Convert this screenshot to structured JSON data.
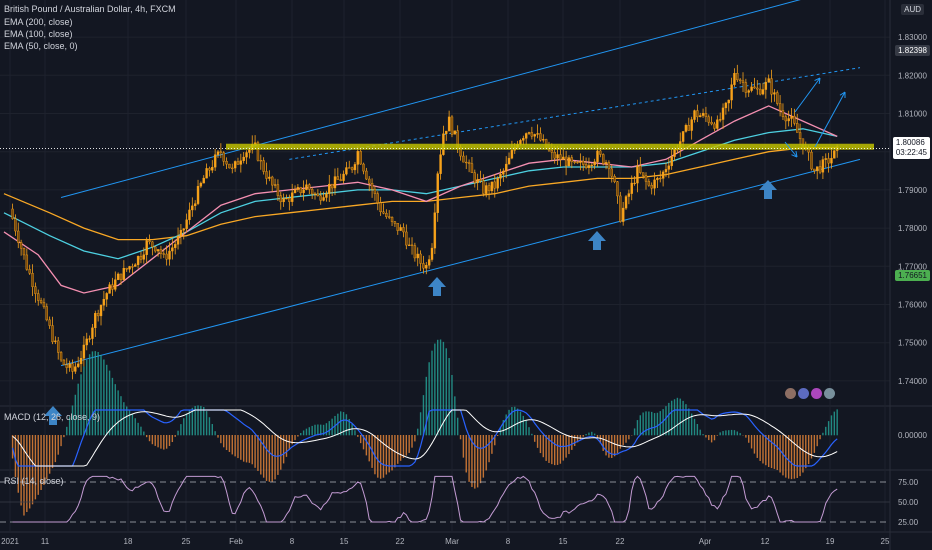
{
  "title": "British Pound / Australian Dollar, 4h, FXCM",
  "indicators": [
    "EMA (200, close)",
    "EMA (100, close)",
    "EMA (50, close, 0)"
  ],
  "currency": "AUD",
  "macd_label": "MACD (12, 26, close, 9)",
  "rsi_label": "RSI (14, close)",
  "chart_data": {
    "type": "candlestick",
    "title": "British Pound / Australian Dollar, 4h, FXCM",
    "ylim": [
      1.735,
      1.835
    ],
    "y_ticks": [
      "1.83000",
      "1.82000",
      "1.81000",
      "1.80000",
      "1.79000",
      "1.78000",
      "1.77000",
      "1.76000",
      "1.75000",
      "1.74000"
    ],
    "x_ticks": [
      "2021",
      "11",
      "18",
      "25",
      "Feb",
      "8",
      "15",
      "22",
      "Mar",
      "8",
      "15",
      "22",
      "Apr",
      "12",
      "19",
      "25"
    ],
    "price_labels": {
      "high": "1.82398",
      "current": "1.80086",
      "countdown": "03:22:45",
      "low": "1.76651"
    },
    "resistance_level": 1.8013,
    "price_path": [
      [
        1,
        1.785
      ],
      [
        4,
        1.77
      ],
      [
        7,
        1.758
      ],
      [
        10,
        1.745
      ],
      [
        12,
        1.7425
      ],
      [
        14,
        1.748
      ],
      [
        16,
        1.757
      ],
      [
        18,
        1.763
      ],
      [
        20,
        1.767
      ],
      [
        22,
        1.77
      ],
      [
        24,
        1.773
      ],
      [
        25,
        1.776
      ],
      [
        27,
        1.775
      ],
      [
        28,
        1.772
      ],
      [
        31,
        1.778
      ],
      [
        33,
        1.786
      ],
      [
        35,
        1.793
      ],
      [
        37,
        1.798
      ],
      [
        38,
        1.8
      ],
      [
        40,
        1.795
      ],
      [
        42,
        1.8
      ],
      [
        44,
        1.801
      ],
      [
        45,
        1.797
      ],
      [
        47,
        1.791
      ],
      [
        49,
        1.787
      ],
      [
        51,
        1.789
      ],
      [
        53,
        1.791
      ],
      [
        55,
        1.788
      ],
      [
        57,
        1.791
      ],
      [
        59,
        1.793
      ],
      [
        61,
        1.796
      ],
      [
        62,
        1.8
      ],
      [
        64,
        1.792
      ],
      [
        66,
        1.785
      ],
      [
        68,
        1.781
      ],
      [
        70,
        1.779
      ],
      [
        71,
        1.775
      ],
      [
        73,
        1.771
      ],
      [
        74,
        1.77
      ],
      [
        75,
        1.776
      ],
      [
        76,
        1.795
      ],
      [
        77,
        1.805
      ],
      [
        78,
        1.808
      ],
      [
        80,
        1.8
      ],
      [
        82,
        1.794
      ],
      [
        84,
        1.79
      ],
      [
        86,
        1.791
      ],
      [
        88,
        1.796
      ],
      [
        90,
        1.803
      ],
      [
        92,
        1.806
      ],
      [
        94,
        1.803
      ],
      [
        96,
        1.799
      ],
      [
        98,
        1.798
      ],
      [
        100,
        1.796
      ],
      [
        102,
        1.797
      ],
      [
        104,
        1.799
      ],
      [
        106,
        1.797
      ],
      [
        107,
        1.791
      ],
      [
        108,
        1.783
      ],
      [
        109,
        1.787
      ],
      [
        111,
        1.795
      ],
      [
        113,
        1.791
      ],
      [
        115,
        1.793
      ],
      [
        117,
        1.799
      ],
      [
        119,
        1.804
      ],
      [
        121,
        1.81
      ],
      [
        123,
        1.809
      ],
      [
        125,
        1.807
      ],
      [
        127,
        1.813
      ],
      [
        128,
        1.821
      ],
      [
        130,
        1.817
      ],
      [
        132,
        1.816
      ],
      [
        134,
        1.818
      ],
      [
        136,
        1.811
      ],
      [
        138,
        1.808
      ],
      [
        140,
        1.802
      ],
      [
        142,
        1.795
      ],
      [
        144,
        1.797
      ],
      [
        146,
        1.8
      ]
    ],
    "ema50": [
      [
        0,
        1.779
      ],
      [
        6,
        1.773
      ],
      [
        10,
        1.765
      ],
      [
        14,
        1.763
      ],
      [
        20,
        1.765
      ],
      [
        26,
        1.772
      ],
      [
        32,
        1.779
      ],
      [
        38,
        1.786
      ],
      [
        44,
        1.789
      ],
      [
        50,
        1.79
      ],
      [
        56,
        1.791
      ],
      [
        62,
        1.792
      ],
      [
        68,
        1.79
      ],
      [
        74,
        1.787
      ],
      [
        80,
        1.791
      ],
      [
        86,
        1.794
      ],
      [
        92,
        1.797
      ],
      [
        98,
        1.798
      ],
      [
        104,
        1.797
      ],
      [
        110,
        1.796
      ],
      [
        116,
        1.798
      ],
      [
        122,
        1.803
      ],
      [
        128,
        1.808
      ],
      [
        134,
        1.812
      ],
      [
        140,
        1.808
      ],
      [
        146,
        1.804
      ]
    ],
    "ema100": [
      [
        0,
        1.784
      ],
      [
        8,
        1.778
      ],
      [
        14,
        1.774
      ],
      [
        20,
        1.772
      ],
      [
        26,
        1.775
      ],
      [
        32,
        1.779
      ],
      [
        38,
        1.784
      ],
      [
        44,
        1.787
      ],
      [
        50,
        1.788
      ],
      [
        56,
        1.789
      ],
      [
        62,
        1.79
      ],
      [
        68,
        1.79
      ],
      [
        74,
        1.789
      ],
      [
        80,
        1.791
      ],
      [
        86,
        1.793
      ],
      [
        92,
        1.795
      ],
      [
        98,
        1.796
      ],
      [
        104,
        1.796
      ],
      [
        110,
        1.796
      ],
      [
        116,
        1.797
      ],
      [
        122,
        1.8
      ],
      [
        128,
        1.803
      ],
      [
        134,
        1.805
      ],
      [
        140,
        1.806
      ],
      [
        146,
        1.804
      ]
    ],
    "ema200": [
      [
        0,
        1.789
      ],
      [
        8,
        1.784
      ],
      [
        14,
        1.78
      ],
      [
        20,
        1.777
      ],
      [
        26,
        1.777
      ],
      [
        32,
        1.778
      ],
      [
        38,
        1.781
      ],
      [
        44,
        1.783
      ],
      [
        50,
        1.784
      ],
      [
        56,
        1.785
      ],
      [
        62,
        1.786
      ],
      [
        68,
        1.787
      ],
      [
        74,
        1.787
      ],
      [
        80,
        1.788
      ],
      [
        86,
        1.789
      ],
      [
        92,
        1.791
      ],
      [
        98,
        1.792
      ],
      [
        104,
        1.793
      ],
      [
        110,
        1.793
      ],
      [
        116,
        1.794
      ],
      [
        122,
        1.796
      ],
      [
        128,
        1.798
      ],
      [
        134,
        1.8
      ],
      [
        140,
        1.801
      ],
      [
        146,
        1.801
      ]
    ],
    "channel_upper": [
      [
        10,
        1.788
      ],
      [
        140,
        1.84
      ]
    ],
    "channel_lower": [
      [
        10,
        1.744
      ],
      [
        150,
        1.798
      ]
    ],
    "macd_ticks": [
      "0.00000"
    ],
    "rsi_ticks": [
      "75.00",
      "50.00",
      "25.00"
    ],
    "rsi_levels": [
      75,
      50,
      25
    ]
  },
  "colors": {
    "background": "#131722",
    "candle": "#f7a21b",
    "ema50": "#f48fb1",
    "ema100": "#4dd0e1",
    "ema200": "#f9a825",
    "channel": "#2196f3",
    "resistance": "#c0c000",
    "arrow": "#3d85c6",
    "macd": "#2962ff",
    "signal": "#ffffff",
    "rsi": "#c39bd3"
  }
}
